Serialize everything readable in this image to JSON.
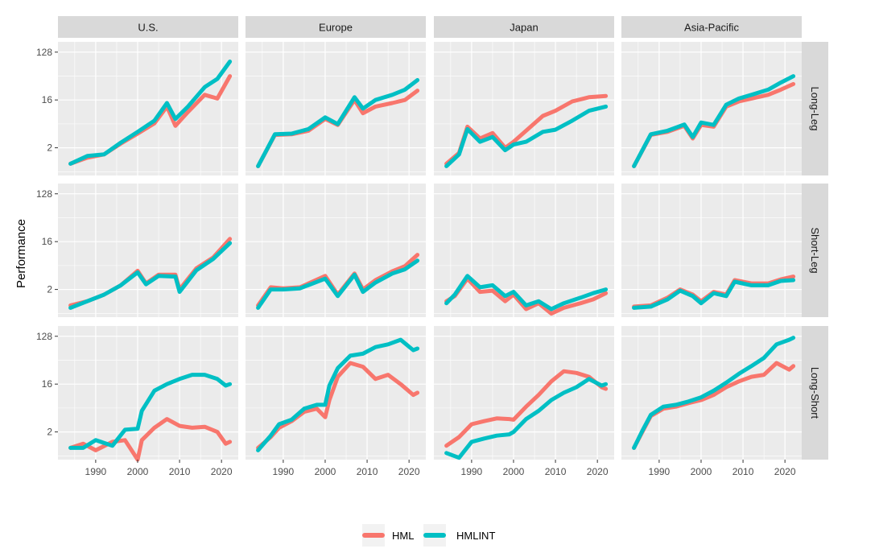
{
  "chart_data": {
    "type": "line",
    "title": "",
    "xlabel": "",
    "ylabel": "Performance",
    "y_scale": "log2",
    "ylim": [
      0.6,
      200
    ],
    "y_ticks": [
      2,
      16,
      128
    ],
    "y_tick_labels": [
      "2",
      "16",
      "128"
    ],
    "xlim": [
      1981,
      2024
    ],
    "x_ticks": [
      1990,
      2000,
      2010,
      2020
    ],
    "x_tick_labels": [
      "1990",
      "2000",
      "2010",
      "2020"
    ],
    "grid": true,
    "legend_position": "bottom",
    "columns": [
      "U.S.",
      "Europe",
      "Japan",
      "Asia-Pacific"
    ],
    "rows": [
      "Long-Leg",
      "Short-Leg",
      "Long-Short"
    ],
    "series_meta": [
      {
        "name": "HML",
        "color": "#F8766D"
      },
      {
        "name": "HMLINT",
        "color": "#00BFC4"
      }
    ],
    "panels": [
      {
        "column": "U.S.",
        "row": "Long-Leg",
        "x": [
          1984,
          1988,
          1992,
          1996,
          2000,
          2004,
          2007,
          2009,
          2012,
          2016,
          2019,
          2022
        ],
        "series": [
          {
            "name": "HML",
            "values": [
              1,
              1.3,
              1.5,
              2.4,
              3.7,
              5.8,
              12,
              5.2,
              9.5,
              20,
              17,
              45
            ]
          },
          {
            "name": "HMLINT",
            "values": [
              1,
              1.4,
              1.5,
              2.5,
              4,
              6.5,
              14,
              7,
              12,
              28,
              40,
              85
            ]
          }
        ]
      },
      {
        "column": "Europe",
        "row": "Long-Leg",
        "x": [
          1984,
          1988,
          1992,
          1996,
          2000,
          2003,
          2007,
          2009,
          2012,
          2016,
          2019,
          2022
        ],
        "series": [
          {
            "name": "HML",
            "values": [
              0.9,
              3.5,
              3.6,
              4.2,
              7,
              5.4,
              16,
              9,
              12,
              14,
              16,
              24
            ]
          },
          {
            "name": "HMLINT",
            "values": [
              0.9,
              3.6,
              3.7,
              4.5,
              7.5,
              5.6,
              18,
              11,
              16,
              20,
              25,
              38
            ]
          }
        ]
      },
      {
        "column": "Japan",
        "row": "Long-Leg",
        "x": [
          1984,
          1987,
          1989,
          1992,
          1995,
          1998,
          2000,
          2003,
          2007,
          2010,
          2014,
          2018,
          2022
        ],
        "series": [
          {
            "name": "HML",
            "values": [
              1,
              1.6,
              5,
              3,
              3.8,
              2,
              2.6,
              4.2,
              8,
              10,
              15,
              18,
              19
            ]
          },
          {
            "name": "HMLINT",
            "values": [
              0.9,
              1.5,
              4.5,
              2.6,
              3.2,
              1.8,
              2.3,
              2.6,
              4,
              4.4,
              6.5,
              10,
              12
            ]
          }
        ]
      },
      {
        "column": "Asia-Pacific",
        "row": "Long-Leg",
        "x": [
          1984,
          1988,
          1992,
          1996,
          1998,
          2000,
          2003,
          2006,
          2009,
          2012,
          2016,
          2019,
          2022
        ],
        "series": [
          {
            "name": "HML",
            "values": [
              0.9,
              3.5,
              4,
              5.2,
              3,
              5.4,
              5,
              12,
              15,
              17,
              20,
              25,
              32
            ]
          },
          {
            "name": "HMLINT",
            "values": [
              0.9,
              3.6,
              4.2,
              5.5,
              3.2,
              6,
              5.4,
              13,
              17,
              20,
              25,
              34,
              45
            ]
          }
        ]
      },
      {
        "column": "U.S.",
        "row": "Short-Leg",
        "x": [
          1984,
          1988,
          1992,
          1996,
          2000,
          2002,
          2005,
          2009,
          2010,
          2014,
          2018,
          2022
        ],
        "series": [
          {
            "name": "HML",
            "values": [
              1,
              1.2,
              1.6,
              2.4,
              4.5,
              2.6,
              3.8,
              3.8,
              2,
              5,
              8,
              18
            ]
          },
          {
            "name": "HMLINT",
            "values": [
              0.9,
              1.2,
              1.6,
              2.4,
              4.2,
              2.5,
              3.6,
              3.5,
              1.8,
              4.6,
              7.5,
              15
            ]
          }
        ]
      },
      {
        "column": "Europe",
        "row": "Short-Leg",
        "x": [
          1984,
          1987,
          1990,
          1994,
          2000,
          2003,
          2007,
          2009,
          2012,
          2016,
          2019,
          2022
        ],
        "series": [
          {
            "name": "HML",
            "values": [
              1,
              2.2,
              2.1,
              2.2,
              3.6,
              1.6,
              4,
              2,
              3,
              4.4,
              5.5,
              9
            ]
          },
          {
            "name": "HMLINT",
            "values": [
              0.9,
              2,
              2,
              2.1,
              3.2,
              1.5,
              3.8,
              1.8,
              2.7,
              4,
              4.8,
              7
            ]
          }
        ]
      },
      {
        "column": "Japan",
        "row": "Short-Leg",
        "x": [
          1984,
          1986,
          1989,
          1992,
          1995,
          1998,
          2000,
          2003,
          2006,
          2009,
          2012,
          2016,
          2019,
          2022
        ],
        "series": [
          {
            "name": "HML",
            "values": [
              1.2,
              1.5,
              3.2,
              1.8,
              1.9,
              1.2,
              1.6,
              0.85,
              1.1,
              0.7,
              0.9,
              1.1,
              1.3,
              1.7
            ]
          },
          {
            "name": "HMLINT",
            "values": [
              1.1,
              1.6,
              3.6,
              2.2,
              2.4,
              1.5,
              1.8,
              1,
              1.2,
              0.85,
              1.1,
              1.4,
              1.7,
              2
            ]
          }
        ]
      },
      {
        "column": "Asia-Pacific",
        "row": "Short-Leg",
        "x": [
          1984,
          1988,
          1992,
          1995,
          1998,
          2000,
          2003,
          2006,
          2008,
          2012,
          2016,
          2019,
          2022
        ],
        "series": [
          {
            "name": "HML",
            "values": [
              0.95,
              1,
              1.4,
              2,
              1.6,
              1.2,
              1.8,
              1.6,
              3,
              2.6,
              2.6,
              3.1,
              3.5
            ]
          },
          {
            "name": "HMLINT",
            "values": [
              0.9,
              0.95,
              1.3,
              1.9,
              1.5,
              1.1,
              1.7,
              1.5,
              2.8,
              2.4,
              2.4,
              2.9,
              3
            ]
          }
        ]
      },
      {
        "column": "U.S.",
        "row": "Long-Short",
        "x": [
          1984,
          1987,
          1990,
          1994,
          1997,
          2000,
          2001,
          2004,
          2007,
          2010,
          2013,
          2016,
          2019,
          2021,
          2022
        ],
        "series": [
          {
            "name": "HML",
            "values": [
              1,
              1.2,
              0.9,
              1.3,
              1.4,
              0.6,
              1.4,
              2.4,
              3.5,
              2.6,
              2.4,
              2.5,
              2,
              1.2,
              1.3
            ]
          },
          {
            "name": "HMLINT",
            "values": [
              1,
              1,
              1.4,
              1.1,
              2.2,
              2.3,
              5,
              12,
              16,
              20,
              24,
              24,
              20,
              15,
              16
            ]
          }
        ]
      },
      {
        "column": "Europe",
        "row": "Long-Short",
        "x": [
          1984,
          1987,
          1989,
          1992,
          1995,
          1998,
          2000,
          2001,
          2003,
          2006,
          2009,
          2012,
          2015,
          2018,
          2021,
          2022
        ],
        "series": [
          {
            "name": "HML",
            "values": [
              1,
              1.6,
              2.4,
              3.2,
              4.8,
              5.5,
              3.8,
              8,
              22,
              40,
              34,
              20,
              24,
              16,
              10,
              11
            ]
          },
          {
            "name": "HMLINT",
            "values": [
              0.9,
              1.7,
              2.8,
              3.4,
              5.5,
              6.5,
              6.5,
              15,
              32,
              55,
              60,
              80,
              90,
              110,
              70,
              75
            ]
          }
        ]
      },
      {
        "column": "Japan",
        "row": "Long-Short",
        "x": [
          1984,
          1987,
          1990,
          1993,
          1996,
          1999,
          2000,
          2003,
          2006,
          2009,
          2012,
          2015,
          2018,
          2021,
          2022
        ],
        "series": [
          {
            "name": "HML",
            "values": [
              1.1,
              1.6,
              2.8,
              3.2,
              3.6,
              3.5,
              3.4,
              6,
              10,
              18,
              28,
              26,
              22,
              14,
              13
            ]
          },
          {
            "name": "HMLINT",
            "values": [
              0.8,
              0.65,
              1.3,
              1.5,
              1.7,
              1.8,
              2,
              3.5,
              5,
              8,
              11,
              14,
              20,
              15,
              16
            ]
          }
        ]
      },
      {
        "column": "Asia-Pacific",
        "row": "Long-Short",
        "x": [
          1984,
          1986,
          1988,
          1991,
          1994,
          1997,
          2000,
          2003,
          2006,
          2009,
          2012,
          2015,
          2018,
          2021,
          2022
        ],
        "series": [
          {
            "name": "HML",
            "values": [
              1,
              2,
              4,
              5.5,
              6,
              7,
              8,
              10,
              14,
              18,
              22,
              24,
              40,
              30,
              35
            ]
          },
          {
            "name": "HMLINT",
            "values": [
              1,
              2.1,
              4.2,
              6,
              6.5,
              7.5,
              9,
              12,
              17,
              25,
              35,
              50,
              90,
              110,
              120
            ]
          }
        ]
      }
    ]
  },
  "legend": {
    "items": [
      {
        "name": "HML",
        "color": "#F8766D"
      },
      {
        "name": "HMLINT",
        "color": "#00BFC4"
      }
    ]
  }
}
